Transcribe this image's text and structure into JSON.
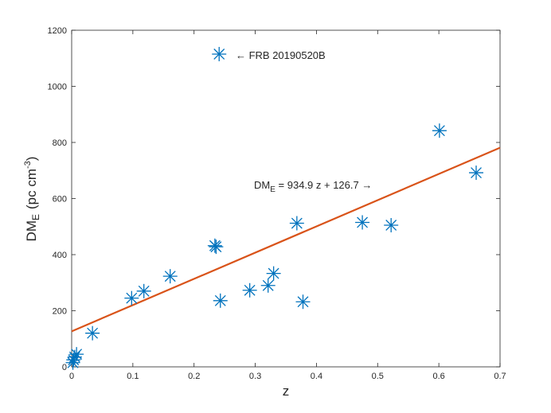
{
  "chart_data": {
    "type": "scatter",
    "xlabel": "z",
    "ylabel_main": "DM",
    "ylabel_sub": "E",
    "ylabel_units_open": "(pc cm",
    "ylabel_units_exp": "-3",
    "ylabel_units_close": ")",
    "xlim": [
      0,
      0.7
    ],
    "ylim": [
      0,
      1200
    ],
    "xticks": [
      0,
      0.1,
      0.2,
      0.3,
      0.4,
      0.5,
      0.6,
      0.7
    ],
    "xtick_labels": [
      "0",
      "0.1",
      "0.2",
      "0.3",
      "0.4",
      "0.5",
      "0.6",
      "0.7"
    ],
    "yticks": [
      0,
      200,
      400,
      600,
      800,
      1000,
      1200
    ],
    "ytick_labels": [
      "0",
      "200",
      "400",
      "600",
      "800",
      "1000",
      "1200"
    ],
    "grid": false,
    "marker_color": "#0072BD",
    "fit_color": "#D95319",
    "points": [
      {
        "x": 0.002,
        "y": 15
      },
      {
        "x": 0.003,
        "y": 25
      },
      {
        "x": 0.005,
        "y": 35
      },
      {
        "x": 0.008,
        "y": 45
      },
      {
        "x": 0.034,
        "y": 120
      },
      {
        "x": 0.098,
        "y": 245
      },
      {
        "x": 0.118,
        "y": 270
      },
      {
        "x": 0.161,
        "y": 323
      },
      {
        "x": 0.234,
        "y": 432
      },
      {
        "x": 0.236,
        "y": 428
      },
      {
        "x": 0.241,
        "y": 1115
      },
      {
        "x": 0.243,
        "y": 236
      },
      {
        "x": 0.291,
        "y": 273
      },
      {
        "x": 0.321,
        "y": 290
      },
      {
        "x": 0.33,
        "y": 333
      },
      {
        "x": 0.368,
        "y": 512
      },
      {
        "x": 0.378,
        "y": 232
      },
      {
        "x": 0.475,
        "y": 515
      },
      {
        "x": 0.522,
        "y": 505
      },
      {
        "x": 0.601,
        "y": 842
      },
      {
        "x": 0.661,
        "y": 692
      }
    ],
    "fit": {
      "slope": 934.9,
      "intercept": 126.7,
      "x_range": [
        0,
        0.7
      ]
    },
    "annotations": [
      {
        "id": "frb-label",
        "text": "← FRB 20190520B",
        "x": 0.268,
        "y": 1112
      },
      {
        "id": "fit-label-main",
        "text": "DM",
        "sub": "E",
        "rest": " = 934.9 z + 126.7 →",
        "x": 0.298,
        "y": 650
      }
    ]
  }
}
